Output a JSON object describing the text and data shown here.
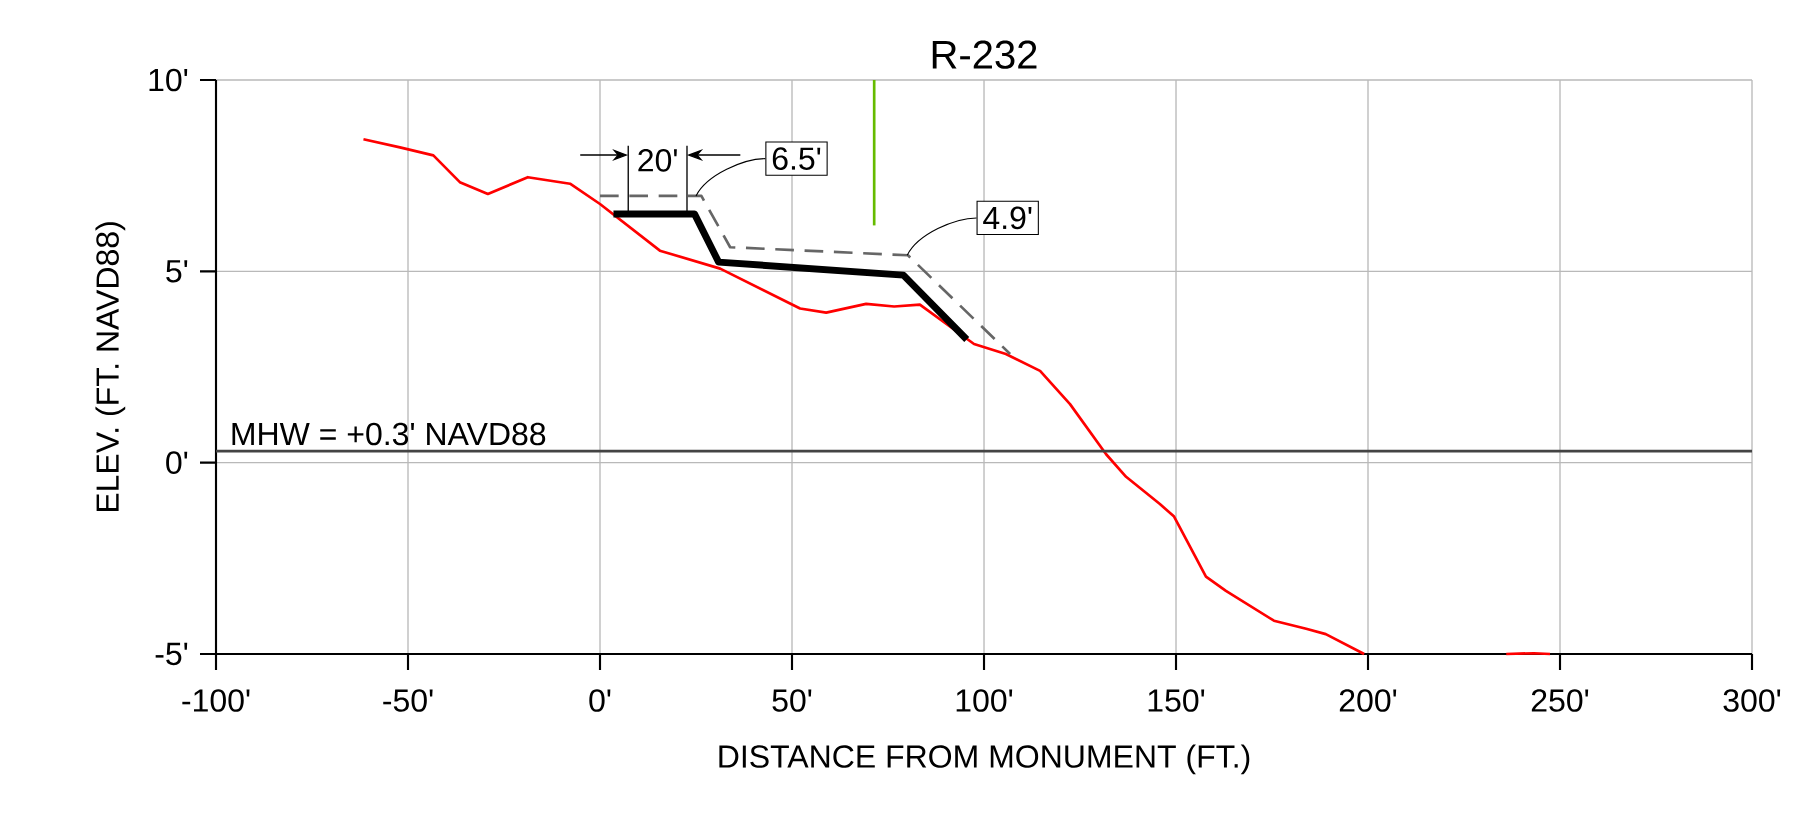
{
  "chart_data": {
    "type": "line",
    "title": "R-232",
    "xlabel": "DISTANCE FROM MONUMENT (FT.)",
    "ylabel": "ELEV. (FT. NAVD88)",
    "series": [
      {
        "color": "#ff0000",
        "x": [
          -61.6,
          -52.1,
          -43.4,
          -36.5,
          -29.2,
          -18.8,
          -7.8,
          0,
          15.6,
          31.3,
          52.1,
          58.9,
          69.3,
          76.6,
          83.3,
          97.4,
          105.7,
          114.6,
          122.4,
          131.8,
          137,
          145.8,
          149.5,
          157.8,
          163,
          175.5,
          183.9,
          189,
          199,
          null,
          236,
          243.2,
          247.4
        ],
        "values": [
          8.45,
          8.24,
          8.03,
          7.33,
          7.02,
          7.46,
          7.29,
          6.76,
          5.54,
          5.07,
          4.03,
          3.92,
          4.15,
          4.08,
          4.13,
          3.1,
          2.84,
          2.4,
          1.53,
          0.22,
          -0.37,
          -1.08,
          -1.41,
          -2.98,
          -3.35,
          -4.13,
          -4.34,
          -4.48,
          -5.0,
          null,
          -5.0,
          -4.98,
          -5.0
        ]
      },
      {
        "color": "#000000",
        "x": [
          3.5,
          24.6,
          30.9,
          79,
          95.5
        ],
        "values": [
          6.5,
          6.5,
          5.24,
          4.9,
          3.22
        ]
      },
      {
        "color": "#666666",
        "line_style": "dashed",
        "x": [
          0,
          26.4,
          33.9,
          80.2,
          106.8
        ],
        "values": [
          6.97,
          6.97,
          5.63,
          5.42,
          2.84
        ]
      },
      {
        "color": "#66bb00",
        "x": [
          71.4,
          71.4
        ],
        "values": [
          10,
          6.2
        ]
      }
    ],
    "xlim": [
      -100,
      300
    ],
    "ylim": [
      -5,
      10
    ],
    "xticks": [
      {
        "value": -100,
        "label": "-100'"
      },
      {
        "value": -50,
        "label": "-50'"
      },
      {
        "value": 0,
        "label": "0'"
      },
      {
        "value": 50,
        "label": "50'"
      },
      {
        "value": 100,
        "label": "100'"
      },
      {
        "value": 150,
        "label": "150'"
      },
      {
        "value": 200,
        "label": "200'"
      },
      {
        "value": 250,
        "label": "250'"
      },
      {
        "value": 300,
        "label": "300'"
      }
    ],
    "yticks": [
      {
        "value": -5,
        "label": "-5'"
      },
      {
        "value": 0,
        "label": "0'"
      },
      {
        "value": 5,
        "label": "5'"
      },
      {
        "value": 10,
        "label": "10'"
      }
    ],
    "grid": true,
    "marker": "none",
    "ref_lines": [
      {
        "axis": "y",
        "value": 0.3,
        "label": "MHW = +0.3' NAVD88",
        "color": "#444444"
      }
    ],
    "annotations": [
      "20'",
      {
        "text": "6.5'",
        "x": 25,
        "y": 6.97
      },
      {
        "text": "4.9'",
        "x": 80,
        "y": 5.42
      }
    ]
  }
}
